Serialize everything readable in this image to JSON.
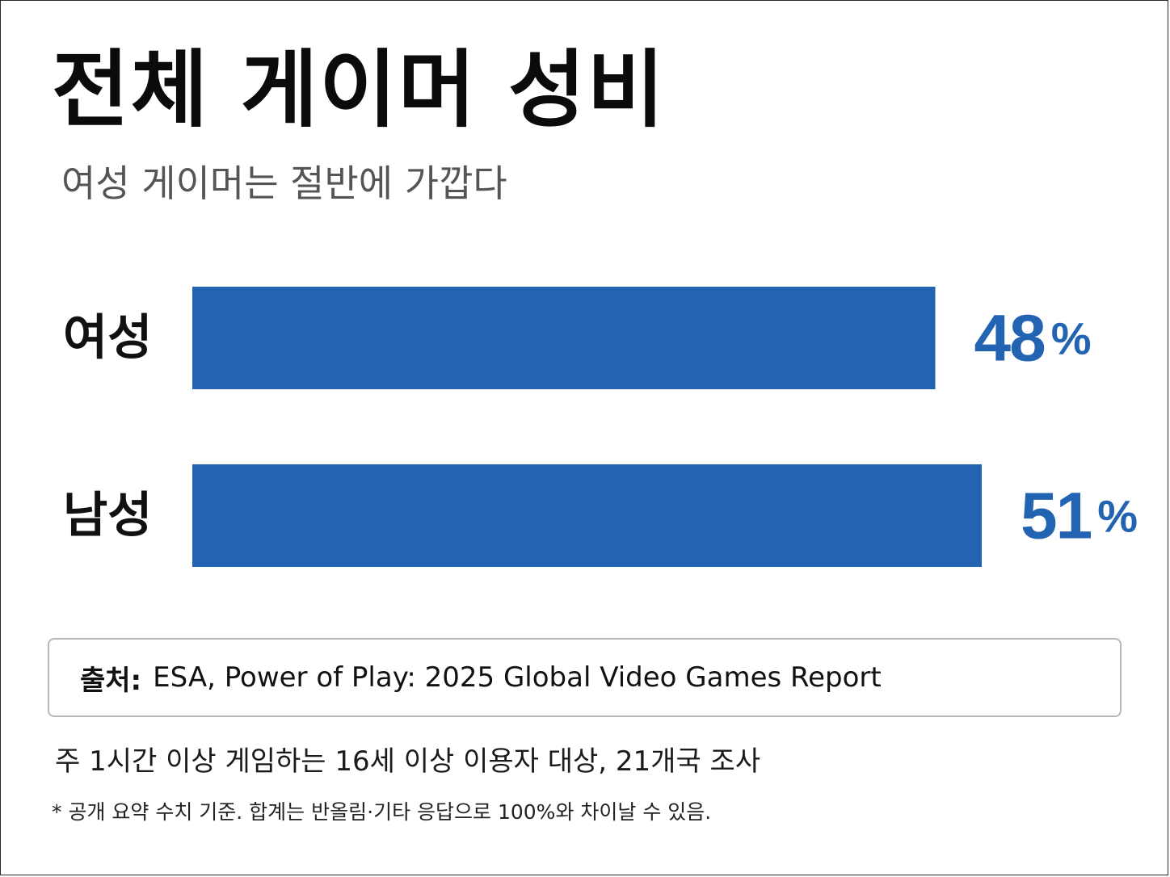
{
  "title": "전체 게이머 성비",
  "subtitle": "여성 게이머는 절반에 가깝다",
  "chart_data": {
    "type": "bar",
    "orientation": "horizontal",
    "categories": [
      "여성",
      "남성"
    ],
    "values": [
      48,
      51
    ],
    "value_labels": [
      "48",
      "51"
    ],
    "unit": "%",
    "xlim": [
      0,
      51
    ],
    "bar_color": "#2364b2",
    "label_color": "#2364b2",
    "grid": false,
    "legend": "none"
  },
  "source": {
    "label": "출처:",
    "text": "ESA, Power of Play: 2025 Global Video Games Report"
  },
  "note": "주 1시간 이상 게임하는 16세 이상 이용자 대상, 21개국 조사",
  "footnote": "* 공개 요약 수치 기준. 합계는 반올림·기타 응답으로 100%와 차이날 수 있음."
}
